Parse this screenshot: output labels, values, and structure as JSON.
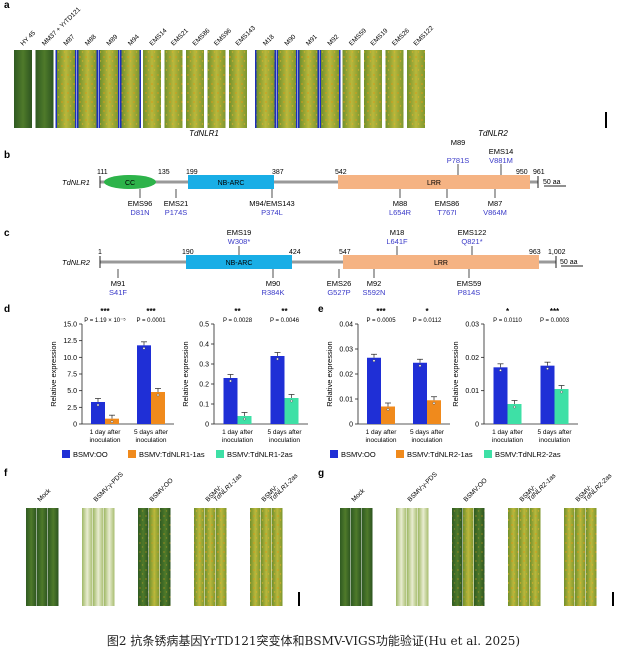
{
  "panels": {
    "a": "a",
    "b": "b",
    "c": "c",
    "d": "d",
    "e": "e",
    "f": "f",
    "g": "g"
  },
  "panel_a": {
    "labels": [
      "HY 45",
      "MM37 + YrTD121",
      "M87",
      "M88",
      "M89",
      "M94",
      "EMS14",
      "EMS21",
      "EMS86",
      "EMS96",
      "EMS143",
      "M18",
      "M90",
      "M91",
      "M92",
      "EMS59",
      "EMS19",
      "EMS26",
      "EMS122"
    ],
    "group1": "TdNLR1",
    "group2": "TdNLR2"
  },
  "panel_b": {
    "gene": "TdNLR1",
    "scale": "50 aa",
    "positions": [
      "111",
      "135",
      "199",
      "387",
      "542",
      "950",
      "961"
    ],
    "domains": {
      "cc": "CC",
      "nbarc": "NB-ARC",
      "lrr": "LRR"
    },
    "top": [
      {
        "id": "EMS14",
        "mut": "V881M"
      },
      {
        "id": "M89",
        "mut": "P781S"
      }
    ],
    "bottom": [
      {
        "id": "EMS96",
        "mut": "D81N"
      },
      {
        "id": "EMS21",
        "mut": "P174S"
      },
      {
        "id": "M94/EMS143",
        "mut": "P374L"
      },
      {
        "id": "M88",
        "mut": "L654R"
      },
      {
        "id": "EMS86",
        "mut": "T767I"
      },
      {
        "id": "M87",
        "mut": "V864M"
      }
    ]
  },
  "panel_c": {
    "gene": "TdNLR2",
    "scale": "50 aa",
    "positions": [
      "1",
      "190",
      "424",
      "547",
      "963",
      "1,002"
    ],
    "domains": {
      "nbarc": "NB-ARC",
      "lrr": "LRR"
    },
    "top": [
      {
        "id": "EMS19",
        "mut": "W308*"
      },
      {
        "id": "M18",
        "mut": "L641F"
      },
      {
        "id": "EMS122",
        "mut": "Q821*"
      }
    ],
    "bottom": [
      {
        "id": "M91",
        "mut": "S41F"
      },
      {
        "id": "M90",
        "mut": "R384K"
      },
      {
        "id": "EMS26",
        "mut": "G527P"
      },
      {
        "id": "M92",
        "mut": "S592N"
      },
      {
        "id": "EMS59",
        "mut": "P814S"
      }
    ]
  },
  "ylabel": "Relative expression",
  "xcats": [
    "1 day after inoculation",
    "5 days after inoculation"
  ],
  "chart_data": [
    {
      "type": "bar",
      "panel": "d",
      "ylim": [
        0,
        15
      ],
      "yticks": [
        "0",
        "2.5",
        "5.0",
        "7.5",
        "10.0",
        "12.5",
        "15.0"
      ],
      "series": [
        {
          "name": "BSMV:OO",
          "color": "#1f2fd6",
          "values": [
            3.3,
            11.8
          ]
        },
        {
          "name": "BSMV:TdNLR1-1as",
          "color": "#f08a1c",
          "values": [
            0.8,
            4.8
          ]
        }
      ],
      "stars": [
        "***",
        "***"
      ],
      "pvals": [
        "P = 1.19 × 10⁻⁵",
        "P = 0.0001"
      ]
    },
    {
      "type": "bar",
      "panel": "d2",
      "ylim": [
        0,
        0.5
      ],
      "yticks": [
        "0",
        "0.1",
        "0.2",
        "0.3",
        "0.4",
        "0.5"
      ],
      "series": [
        {
          "name": "BSMV:OO",
          "color": "#1f2fd6",
          "values": [
            0.23,
            0.34
          ]
        },
        {
          "name": "BSMV:TdNLR1-2as",
          "color": "#3ee0a6",
          "values": [
            0.04,
            0.13
          ]
        }
      ],
      "stars": [
        "**",
        "**"
      ],
      "pvals": [
        "P = 0.0028",
        "P = 0.0046"
      ]
    },
    {
      "type": "bar",
      "panel": "e",
      "ylim": [
        0,
        0.04
      ],
      "yticks": [
        "0",
        "0.01",
        "0.02",
        "0.03",
        "0.04"
      ],
      "series": [
        {
          "name": "BSMV:OO",
          "color": "#1f2fd6",
          "values": [
            0.0265,
            0.0245
          ]
        },
        {
          "name": "BSMV:TdNLR2-1as",
          "color": "#f08a1c",
          "values": [
            0.007,
            0.0095
          ]
        }
      ],
      "stars": [
        "***",
        "*"
      ],
      "pvals": [
        "P = 0.0005",
        "P = 0.0112"
      ]
    },
    {
      "type": "bar",
      "panel": "e2",
      "ylim": [
        0,
        0.03
      ],
      "yticks": [
        "0",
        "0.01",
        "0.02",
        "0.03"
      ],
      "series": [
        {
          "name": "BSMV:OO",
          "color": "#1f2fd6",
          "values": [
            0.017,
            0.0175
          ]
        },
        {
          "name": "BSMV:TdNLR2-2as",
          "color": "#3ee0a6",
          "values": [
            0.006,
            0.0105
          ]
        }
      ],
      "stars": [
        "*",
        "***"
      ],
      "pvals": [
        "P = 0.0110",
        "P = 0.0003"
      ]
    }
  ],
  "legend_d": [
    "BSMV:OO",
    "BSMV:TdNLR1-1as",
    "BSMV:TdNLR1-2as"
  ],
  "legend_e": [
    "BSMV:OO",
    "BSMV:TdNLR2-1as",
    "BSMV:TdNLR2-2as"
  ],
  "panel_f": {
    "labels": [
      "Mock",
      "BSMV:γ-PDS",
      "BSMV:OO",
      "BSMV: TdNLR1-1as",
      "BSMV: TdNLR1-2as"
    ]
  },
  "panel_g": {
    "labels": [
      "Mock",
      "BSMV:γ-PDS",
      "BSMV:OO",
      "BSMV: TdNLR2-1as",
      "BSMV: TdNLR2-2as"
    ]
  },
  "caption": "图2  抗条锈病基因YrTD121突变体和BSMV-VIGS功能验证(Hu et al. 2025)",
  "colors": {
    "blue": "#1f2fd6",
    "orange": "#f08a1c",
    "teal": "#3ee0a6",
    "cc": "#2db34a",
    "nbarc": "#19aee6",
    "lrr": "#f5b383",
    "mutblue": "#3a3ac8"
  }
}
